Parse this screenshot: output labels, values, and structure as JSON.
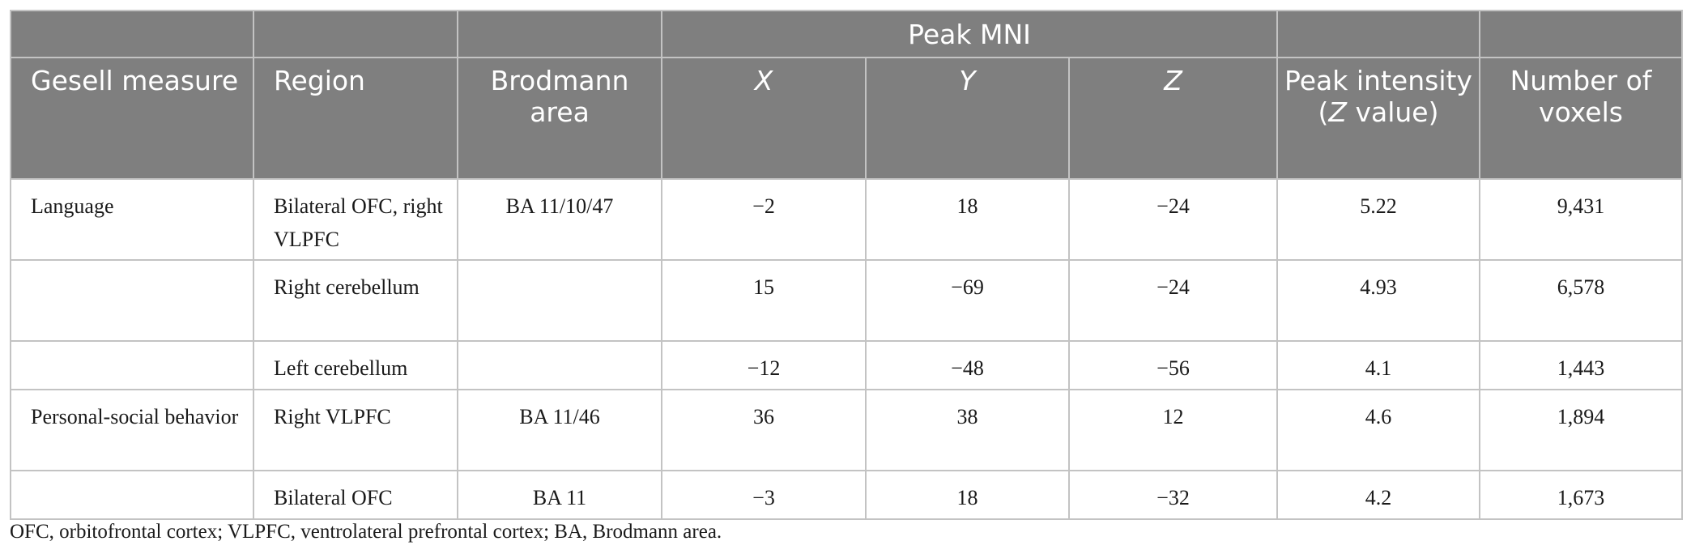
{
  "header": {
    "group_label": "Peak MNI",
    "columns": {
      "gesell_measure": "Gesell measure",
      "region": "Region",
      "brodmann_area": "Brodmann area",
      "x": "X",
      "y": "Y",
      "z": "Z",
      "peak_intensity_prefix": "Peak intensity (",
      "peak_intensity_z": "Z",
      "peak_intensity_suffix": " value)",
      "number_of_voxels": "Number of voxels"
    }
  },
  "rows": [
    {
      "measure": "Language",
      "region": "Bilateral OFC, right VLPFC",
      "ba": "BA 11/10/47",
      "x": "−2",
      "y": "18",
      "z": "−24",
      "peak": "5.22",
      "voxels": "9,431"
    },
    {
      "measure": "",
      "region": "Right cerebellum",
      "ba": "",
      "x": "15",
      "y": "−69",
      "z": "−24",
      "peak": "4.93",
      "voxels": "6,578"
    },
    {
      "measure": "",
      "region": "Left cerebellum",
      "ba": "",
      "x": "−12",
      "y": "−48",
      "z": "−56",
      "peak": "4.1",
      "voxels": "1,443"
    },
    {
      "measure": "Personal-social behavior",
      "region": "Right VLPFC",
      "ba": "BA 11/46",
      "x": "36",
      "y": "38",
      "z": "12",
      "peak": "4.6",
      "voxels": "1,894"
    },
    {
      "measure": "",
      "region": "Bilateral OFC",
      "ba": "BA 11",
      "x": "−3",
      "y": "18",
      "z": "−32",
      "peak": "4.2",
      "voxels": "1,673"
    }
  ],
  "footnote": "OFC, orbitofrontal cortex; VLPFC, ventrolateral prefrontal cortex; BA, Brodmann area."
}
